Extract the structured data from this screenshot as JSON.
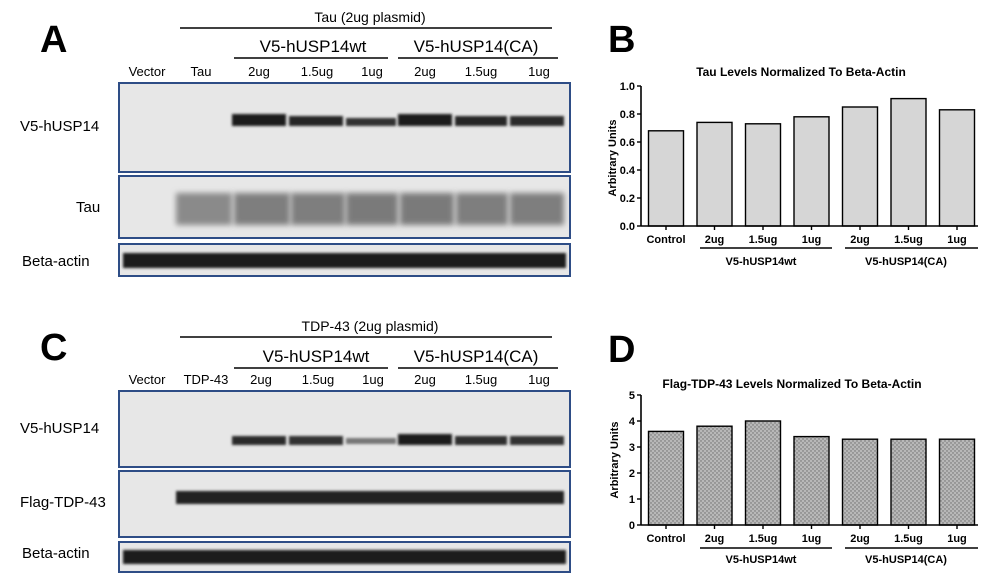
{
  "panel_letters": [
    "A",
    "B",
    "C",
    "D"
  ],
  "colors": {
    "blot_frame": "#2e4d86",
    "blot_bg": "#e7e7e7",
    "band": "#1c1c1c",
    "bar_fill_b": "#d6d6d6",
    "bar_fill_d": "#b0b0b0"
  },
  "blot_a": {
    "header": "Tau (2ug plasmid)",
    "group_wt": "V5-hUSP14wt",
    "group_ca": "V5-hUSP14(CA)",
    "lanes": [
      "Vector",
      "Tau",
      "2ug",
      "1.5ug",
      "1ug",
      "2ug",
      "1.5ug",
      "1ug"
    ],
    "rows": [
      "V5-hUSP14",
      "Tau",
      "Beta-actin"
    ]
  },
  "blot_c": {
    "header": "TDP-43 (2ug plasmid)",
    "group_wt": "V5-hUSP14wt",
    "group_ca": "V5-hUSP14(CA)",
    "lanes": [
      "Vector",
      "TDP-43",
      "2ug",
      "1.5ug",
      "1ug",
      "2ug",
      "1.5ug",
      "1ug"
    ],
    "rows": [
      "V5-hUSP14",
      "Flag-TDP-43",
      "Beta-actin"
    ]
  },
  "chart_data": [
    {
      "type": "bar",
      "title": "Tau Levels Normalized To Beta-Actin",
      "ylabel": "Arbitrary Units",
      "xlabel": "",
      "categories": [
        "Control",
        "2ug",
        "1.5ug",
        "1ug",
        "2ug",
        "1.5ug",
        "1ug"
      ],
      "groups": [
        "V5-hUSP14wt",
        "V5-hUSP14(CA)"
      ],
      "values": [
        0.68,
        0.74,
        0.73,
        0.78,
        0.85,
        0.91,
        0.83
      ],
      "ylim": [
        0,
        1.0
      ],
      "yticks": [
        "0.0",
        "0.2",
        "0.4",
        "0.6",
        "0.8",
        "1.0"
      ],
      "grid": false,
      "legend": "none"
    },
    {
      "type": "bar",
      "title": "Flag-TDP-43 Levels Normalized To Beta-Actin",
      "ylabel": "Arbitrary Units",
      "xlabel": "",
      "categories": [
        "Control",
        "2ug",
        "1.5ug",
        "1ug",
        "2ug",
        "1.5ug",
        "1ug"
      ],
      "groups": [
        "V5-hUSP14wt",
        "V5-hUSP14(CA)"
      ],
      "values": [
        3.6,
        3.8,
        4.0,
        3.4,
        3.3,
        3.3,
        3.3
      ],
      "ylim": [
        0,
        5
      ],
      "yticks": [
        "0",
        "1",
        "2",
        "3",
        "4",
        "5"
      ],
      "grid": false,
      "legend": "none"
    }
  ]
}
